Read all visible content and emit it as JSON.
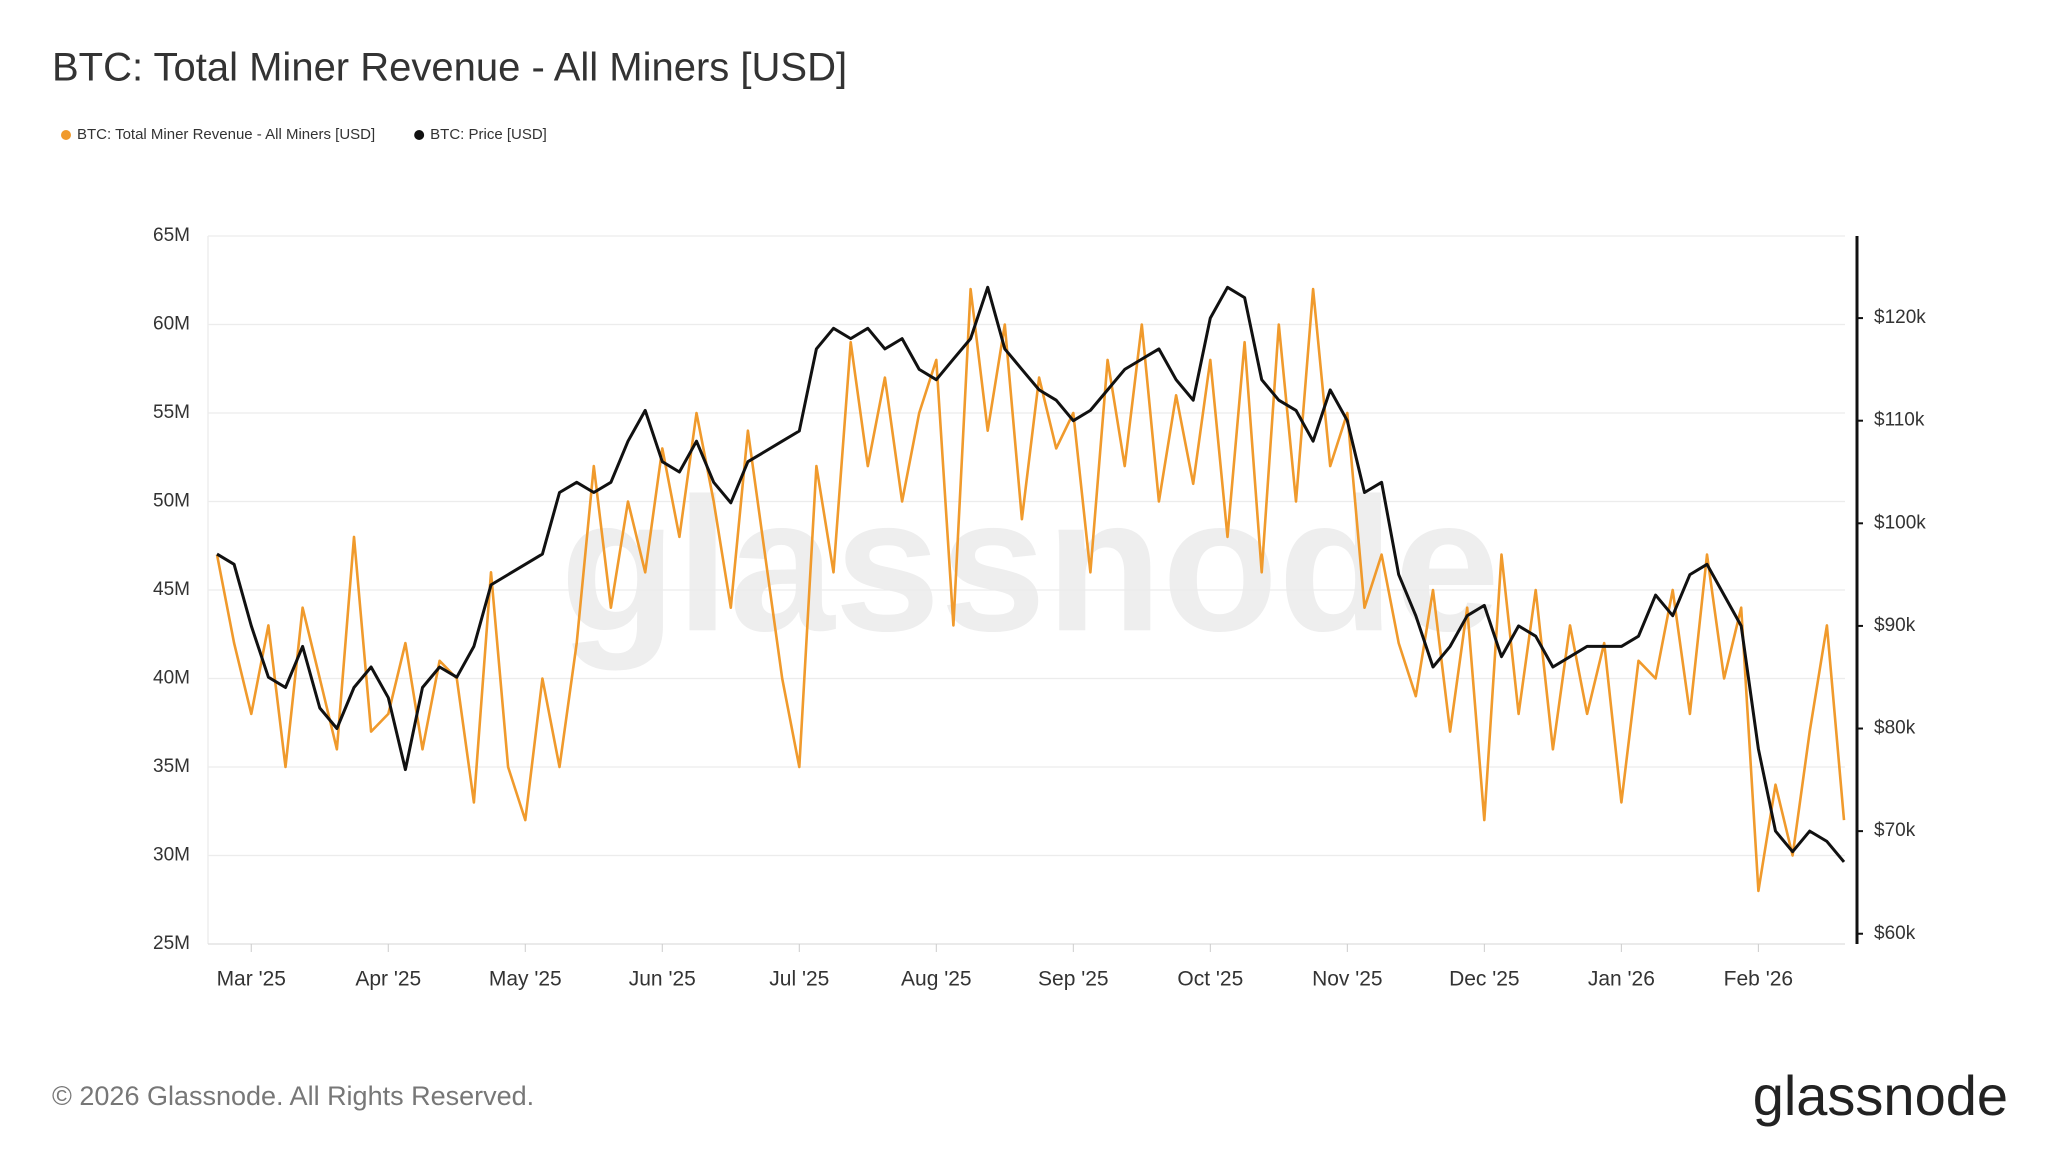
{
  "chart_data": {
    "type": "line",
    "title": "BTC: Total Miner Revenue - All Miners [USD]",
    "watermark": "glassnode",
    "categories": [
      null,
      null,
      "Mar '25",
      null,
      null,
      null,
      null,
      null,
      null,
      null,
      "Apr '25",
      null,
      null,
      null,
      null,
      null,
      null,
      null,
      "May '25",
      null,
      null,
      null,
      null,
      null,
      null,
      null,
      "Jun '25",
      null,
      null,
      null,
      null,
      null,
      null,
      null,
      "Jul '25",
      null,
      null,
      null,
      null,
      null,
      null,
      null,
      "Aug '25",
      null,
      null,
      null,
      null,
      null,
      null,
      null,
      "Sep '25",
      null,
      null,
      null,
      null,
      null,
      null,
      null,
      "Oct '25",
      null,
      null,
      null,
      null,
      null,
      null,
      null,
      "Nov '25",
      null,
      null,
      null,
      null,
      null,
      null,
      null,
      "Dec '25",
      null,
      null,
      null,
      null,
      null,
      null,
      null,
      "Jan '26",
      null,
      null,
      null,
      null,
      null,
      null,
      null,
      "Feb '26",
      null,
      null,
      null,
      null,
      null
    ],
    "series": [
      {
        "name": "BTC: Total Miner Revenue - All Miners [USD]",
        "color": "#f09a2c",
        "axis": "y",
        "values": [
          47000000,
          42000000,
          38000000,
          43000000,
          35000000,
          44000000,
          40000000,
          36000000,
          48000000,
          37000000,
          38000000,
          42000000,
          36000000,
          41000000,
          40000000,
          33000000,
          46000000,
          35000000,
          32000000,
          40000000,
          35000000,
          42000000,
          52000000,
          44000000,
          50000000,
          46000000,
          53000000,
          48000000,
          55000000,
          50000000,
          44000000,
          54000000,
          47000000,
          40000000,
          35000000,
          52000000,
          46000000,
          59000000,
          52000000,
          57000000,
          50000000,
          55000000,
          58000000,
          43000000,
          62000000,
          54000000,
          60000000,
          49000000,
          57000000,
          53000000,
          55000000,
          46000000,
          58000000,
          52000000,
          60000000,
          50000000,
          56000000,
          51000000,
          58000000,
          48000000,
          59000000,
          46000000,
          60000000,
          50000000,
          62000000,
          52000000,
          55000000,
          44000000,
          47000000,
          42000000,
          39000000,
          45000000,
          37000000,
          44000000,
          32000000,
          47000000,
          38000000,
          45000000,
          36000000,
          43000000,
          38000000,
          42000000,
          33000000,
          41000000,
          40000000,
          45000000,
          38000000,
          47000000,
          40000000,
          44000000,
          28000000,
          34000000,
          30000000,
          37000000,
          43000000,
          32000000
        ]
      },
      {
        "name": "BTC: Price [USD]",
        "color": "#111111",
        "axis": "y2",
        "values": [
          97000,
          96000,
          90000,
          85000,
          84000,
          88000,
          82000,
          80000,
          84000,
          86000,
          83000,
          76000,
          84000,
          86000,
          85000,
          88000,
          94000,
          95000,
          96000,
          97000,
          103000,
          104000,
          103000,
          104000,
          108000,
          111000,
          106000,
          105000,
          108000,
          104000,
          102000,
          106000,
          107000,
          108000,
          109000,
          117000,
          119000,
          118000,
          119000,
          117000,
          118000,
          115000,
          114000,
          116000,
          118000,
          123000,
          117000,
          115000,
          113000,
          112000,
          110000,
          111000,
          113000,
          115000,
          116000,
          117000,
          114000,
          112000,
          120000,
          123000,
          122000,
          114000,
          112000,
          111000,
          108000,
          113000,
          110000,
          103000,
          104000,
          95000,
          91000,
          86000,
          88000,
          91000,
          92000,
          87000,
          90000,
          89000,
          86000,
          87000,
          88000,
          88000,
          88000,
          89000,
          93000,
          91000,
          95000,
          96000,
          93000,
          90000,
          78000,
          70000,
          68000,
          70000,
          69000,
          67000
        ]
      }
    ],
    "ylim": [
      25000000,
      65000000
    ],
    "yticks": [
      {
        "value": 25000000,
        "label": "25M"
      },
      {
        "value": 30000000,
        "label": "30M"
      },
      {
        "value": 35000000,
        "label": "35M"
      },
      {
        "value": 40000000,
        "label": "40M"
      },
      {
        "value": 45000000,
        "label": "45M"
      },
      {
        "value": 50000000,
        "label": "50M"
      },
      {
        "value": 55000000,
        "label": "55M"
      },
      {
        "value": 60000000,
        "label": "60M"
      },
      {
        "value": 65000000,
        "label": "65M"
      }
    ],
    "y2lim": [
      59000,
      128000
    ],
    "y2ticks": [
      {
        "value": 60000,
        "label": "$60k"
      },
      {
        "value": 70000,
        "label": "$70k"
      },
      {
        "value": 80000,
        "label": "$80k"
      },
      {
        "value": 90000,
        "label": "$90k"
      },
      {
        "value": 100000,
        "label": "$100k"
      },
      {
        "value": 110000,
        "label": "$110k"
      },
      {
        "value": 120000,
        "label": "$120k"
      }
    ],
    "grid": true
  },
  "footer": {
    "copyright": "© 2026 Glassnode. All Rights Reserved.",
    "logo": "glassnode"
  }
}
